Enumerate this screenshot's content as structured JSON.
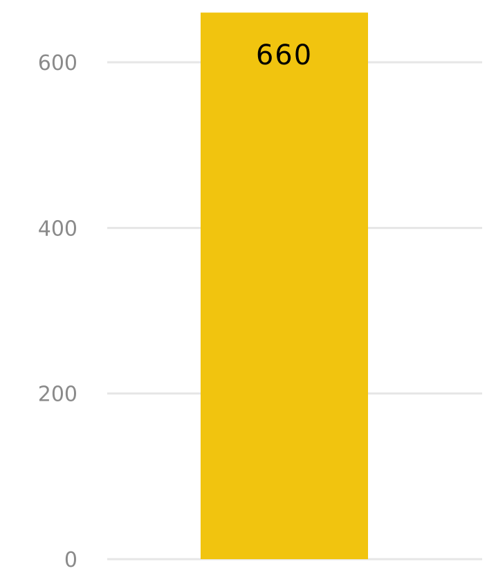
{
  "chart_data": {
    "type": "bar",
    "categories": [
      ""
    ],
    "values": [
      660
    ],
    "ylim": [
      0,
      690
    ],
    "yticks": [
      0,
      200,
      400,
      600
    ],
    "ytick_labels": [
      "0",
      "200",
      "400",
      "600"
    ],
    "data_labels": [
      "660"
    ],
    "grid": true,
    "legend": "none",
    "colors": {
      "bar": "#f1c40f",
      "grid": "#e6e6e6",
      "tick_label": "#8a8a8a",
      "data_label": "#000000"
    }
  }
}
